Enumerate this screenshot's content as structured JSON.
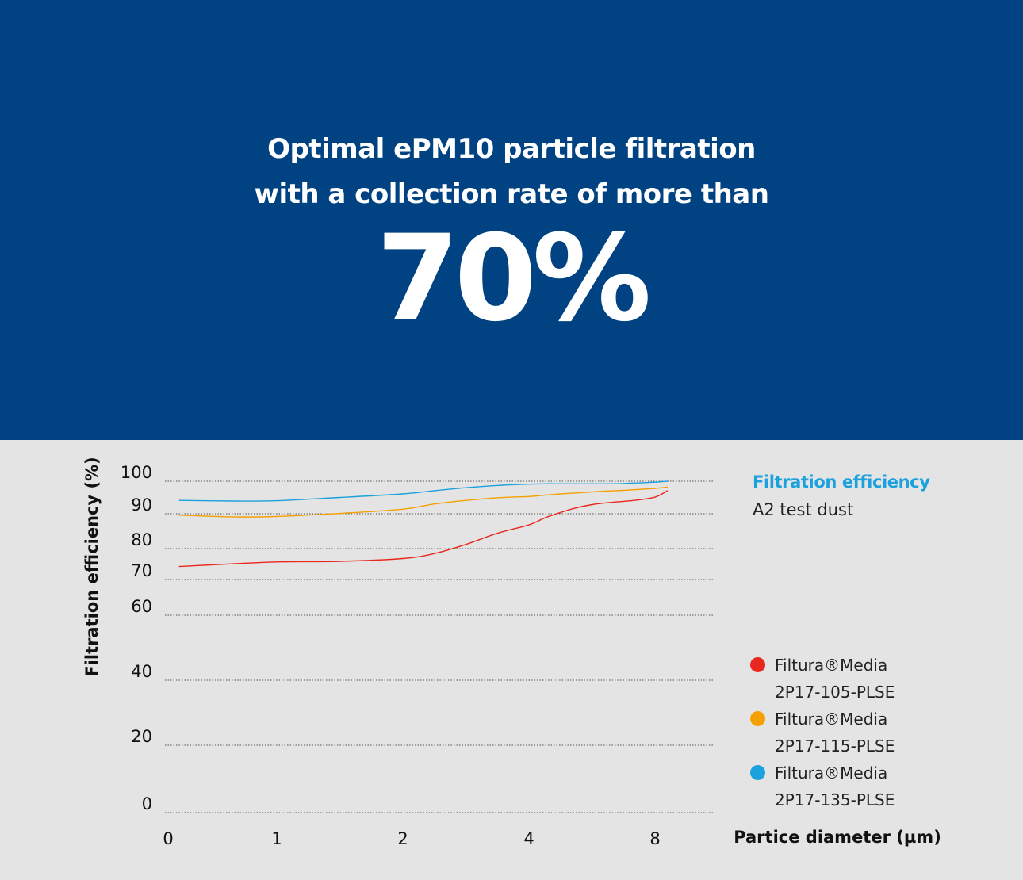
{
  "hero": {
    "line1": "Optimal ePM10 particle filtration",
    "line2": "with a collection rate of more than",
    "big_value": "70%"
  },
  "colors": {
    "hero_bg": "#004282",
    "panel_bg": "#e4e4e4",
    "accent": "#1aa1de"
  },
  "side": {
    "title": "Filtration efficiency",
    "subtitle": "A2 test dust"
  },
  "chart_data": {
    "type": "line",
    "ylabel": "Filtration efficiency (%)",
    "xlabel": "Partice diameter (µm)",
    "x_ticks": [
      "0",
      "1",
      "2",
      "4",
      "8"
    ],
    "y_ticks": [
      0,
      20,
      40,
      60,
      70,
      80,
      90,
      100
    ],
    "ylim": [
      0,
      100
    ],
    "grid": "horizontal dotted",
    "x": [
      0.1,
      0.6,
      1.0,
      1.5,
      2.0,
      2.5,
      3.0,
      3.5,
      4.0,
      4.5,
      5.0,
      5.5,
      6.0,
      6.5,
      7.0,
      7.5,
      8.0,
      8.4
    ],
    "series": [
      {
        "name": "Filtura®Media 2P17-105-PLSE",
        "color": "#e8281e",
        "values": [
          74.2,
          75.1,
          75.7,
          75.9,
          76.8,
          78.4,
          81.2,
          84.4,
          86.8,
          88.8,
          90.4,
          91.8,
          92.8,
          93.4,
          93.8,
          94.3,
          95.1,
          97.1
        ]
      },
      {
        "name": "Filtura®Media 2P17-115-PLSE",
        "color": "#f5a000",
        "values": [
          89.6,
          89.1,
          89.2,
          90.1,
          91.4,
          93.0,
          94.1,
          94.9,
          95.3,
          95.7,
          96.1,
          96.4,
          96.7,
          97.0,
          97.2,
          97.5,
          97.8,
          98.2
        ]
      },
      {
        "name": "Filtura®Media 2P17-135-PLSE",
        "color": "#1aa1de",
        "values": [
          94.1,
          93.9,
          94.0,
          95.0,
          96.1,
          97.1,
          98.0,
          98.7,
          99.1,
          99.2,
          99.2,
          99.2,
          99.2,
          99.2,
          99.3,
          99.5,
          99.7,
          100.0
        ]
      }
    ]
  },
  "legend": [
    {
      "line1": "Filtura®Media",
      "line2": "2P17-105-PLSE",
      "color": "#e8281e",
      "icon": "red-dot-icon"
    },
    {
      "line1": "Filtura®Media",
      "line2": "2P17-115-PLSE",
      "color": "#f5a000",
      "icon": "orange-dot-icon"
    },
    {
      "line1": "Filtura®Media",
      "line2": "2P17-135-PLSE",
      "color": "#1aa1de",
      "icon": "blue-dot-icon"
    }
  ]
}
